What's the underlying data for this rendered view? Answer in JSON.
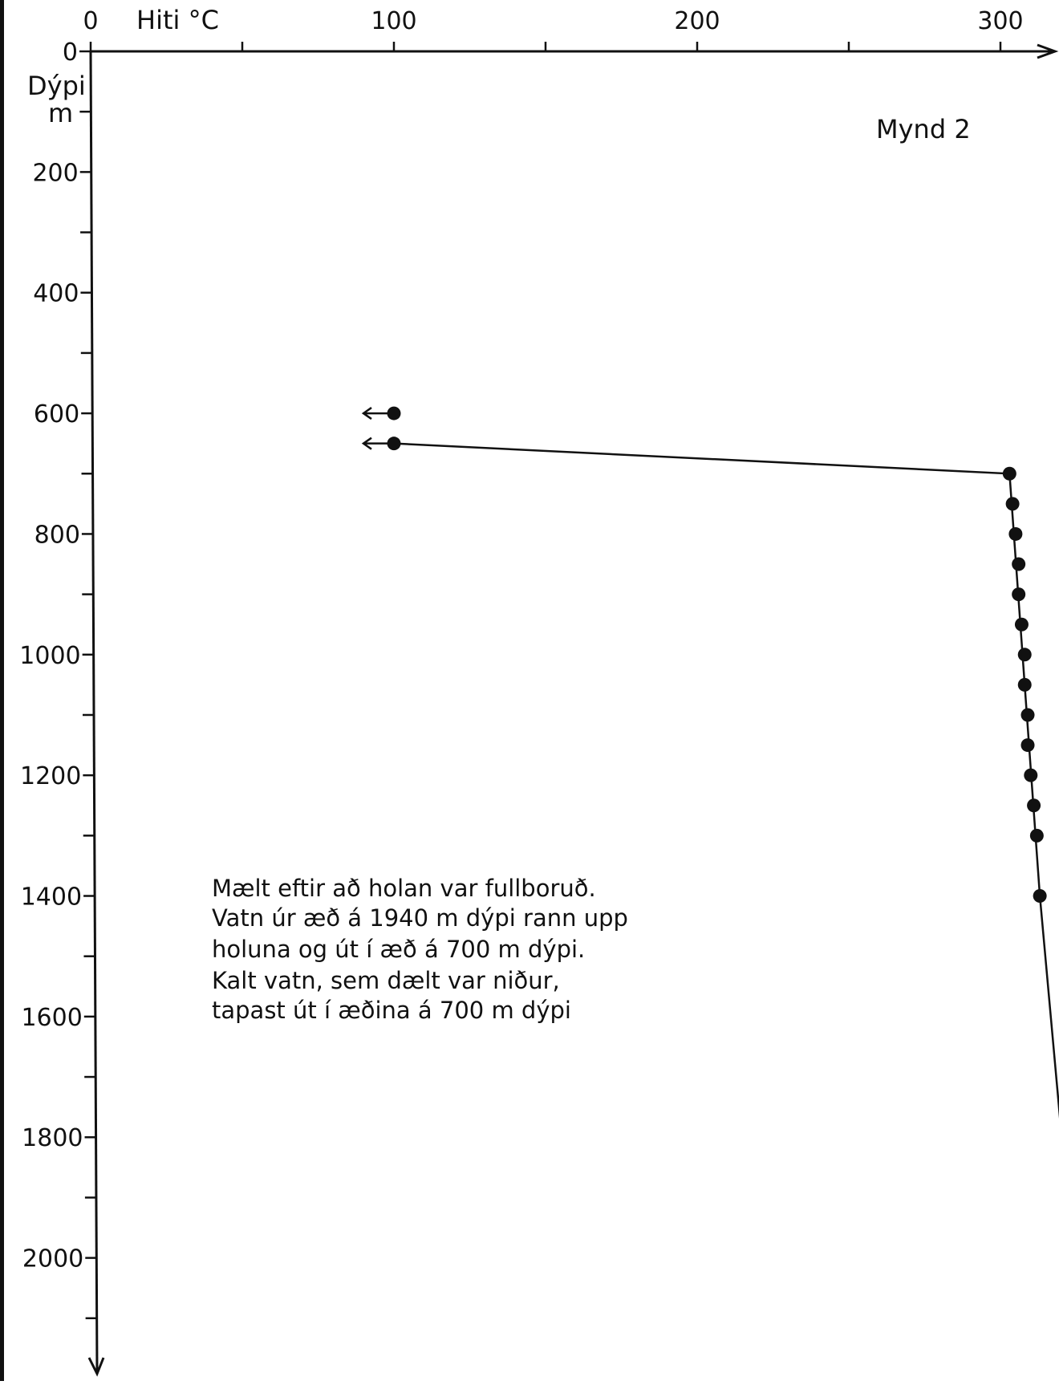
{
  "chart_data": {
    "type": "scatter",
    "title": "Mynd 2",
    "xlabel": "Hiti °C",
    "ylabel_lines": [
      "Dýpi",
      "m"
    ],
    "xlim": [
      0,
      320
    ],
    "ylim": [
      0,
      2200
    ],
    "x_axis_position": "top",
    "y_axis_direction": "down",
    "grid": false,
    "x_ticks": [
      0,
      50,
      100,
      150,
      200,
      250,
      300
    ],
    "x_tick_labels": [
      {
        "value": 0,
        "text": "0"
      },
      {
        "value": 100,
        "text": "100"
      },
      {
        "value": 200,
        "text": "200"
      },
      {
        "value": 300,
        "text": "300"
      }
    ],
    "y_ticks": [
      0,
      100,
      200,
      300,
      400,
      500,
      600,
      700,
      800,
      900,
      1000,
      1100,
      1200,
      1300,
      1400,
      1500,
      1600,
      1700,
      1800,
      1900,
      2000,
      2100
    ],
    "y_tick_labels": [
      {
        "value": 0,
        "text": "0"
      },
      {
        "value": 200,
        "text": "200"
      },
      {
        "value": 400,
        "text": "400"
      },
      {
        "value": 600,
        "text": "600"
      },
      {
        "value": 800,
        "text": "800"
      },
      {
        "value": 1000,
        "text": "1000"
      },
      {
        "value": 1200,
        "text": "1200"
      },
      {
        "value": 1400,
        "text": "1400"
      },
      {
        "value": 1600,
        "text": "1600"
      },
      {
        "value": 1800,
        "text": "1800"
      },
      {
        "value": 2000,
        "text": "2000"
      }
    ],
    "series": [
      {
        "points": [
          {
            "x": 100,
            "y": 600,
            "arrow": "left"
          },
          {
            "x": 100,
            "y": 650,
            "arrow": "left"
          },
          {
            "x": 303,
            "y": 700
          },
          {
            "x": 304,
            "y": 750
          },
          {
            "x": 305,
            "y": 800
          },
          {
            "x": 306,
            "y": 850
          },
          {
            "x": 306,
            "y": 900
          },
          {
            "x": 307,
            "y": 950
          },
          {
            "x": 308,
            "y": 1000
          },
          {
            "x": 308,
            "y": 1050
          },
          {
            "x": 309,
            "y": 1100
          },
          {
            "x": 309,
            "y": 1150
          },
          {
            "x": 310,
            "y": 1200
          },
          {
            "x": 311,
            "y": 1250
          },
          {
            "x": 312,
            "y": 1300
          },
          {
            "x": 313,
            "y": 1400
          }
        ],
        "line": [
          {
            "x": 100,
            "y": 650
          },
          {
            "x": 303,
            "y": 700
          },
          {
            "x": 313,
            "y": 1400
          },
          {
            "x": 322,
            "y": 1900
          }
        ]
      }
    ],
    "annotation_lines": [
      "Mælt eftir að holan var fullboruð.",
      "Vatn úr æð á 1940 m dýpi rann upp",
      "holuna og út í æð á 700 m dýpi.",
      "Kalt vatn, sem dælt var niður,",
      "tapast út í æðina á 700 m dýpi"
    ]
  }
}
